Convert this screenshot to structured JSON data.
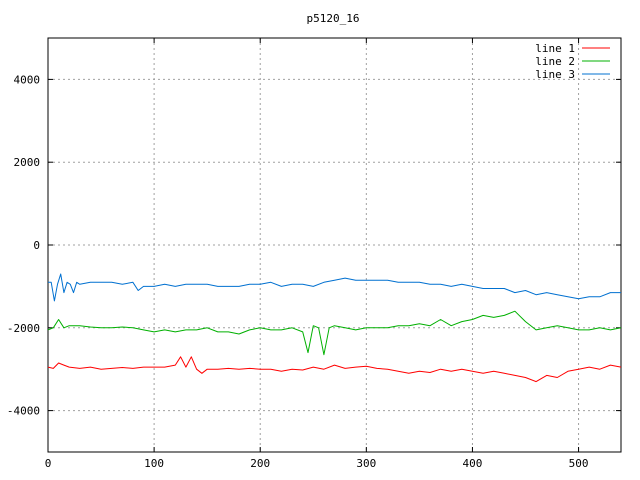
{
  "chart_data": {
    "type": "line",
    "title": "p5120_16",
    "xlabel": "",
    "ylabel": "",
    "xlim": [
      0,
      540
    ],
    "ylim": [
      -5000,
      5000
    ],
    "xticks": [
      0,
      100,
      200,
      300,
      400,
      500
    ],
    "yticks": [
      -4000,
      -2000,
      0,
      2000,
      4000
    ],
    "grid": true,
    "legend_position": "top-right",
    "series": [
      {
        "name": "line 1",
        "color": "#ff0000",
        "x": [
          0,
          5,
          10,
          15,
          20,
          30,
          40,
          50,
          60,
          70,
          80,
          90,
          100,
          110,
          120,
          125,
          130,
          135,
          140,
          145,
          150,
          160,
          170,
          180,
          190,
          200,
          210,
          220,
          230,
          240,
          250,
          260,
          270,
          280,
          290,
          300,
          310,
          320,
          330,
          340,
          350,
          360,
          370,
          380,
          390,
          400,
          410,
          420,
          430,
          440,
          450,
          460,
          470,
          480,
          490,
          500,
          510,
          520,
          530,
          540
        ],
        "y": [
          -2950,
          -2980,
          -2850,
          -2900,
          -2950,
          -2980,
          -2950,
          -3000,
          -2980,
          -2960,
          -2980,
          -2950,
          -2950,
          -2950,
          -2900,
          -2700,
          -2950,
          -2700,
          -3000,
          -3100,
          -3000,
          -3000,
          -2980,
          -3000,
          -2980,
          -3000,
          -3000,
          -3050,
          -3000,
          -3020,
          -2950,
          -3000,
          -2900,
          -2980,
          -2950,
          -2930,
          -2980,
          -3000,
          -3050,
          -3100,
          -3050,
          -3080,
          -3000,
          -3050,
          -3000,
          -3050,
          -3100,
          -3050,
          -3100,
          -3150,
          -3200,
          -3300,
          -3150,
          -3200,
          -3050,
          -3000,
          -2950,
          -3000,
          -2900,
          -2950
        ]
      },
      {
        "name": "line 2",
        "color": "#00b000",
        "x": [
          0,
          5,
          10,
          15,
          20,
          30,
          40,
          50,
          60,
          70,
          80,
          90,
          100,
          110,
          120,
          130,
          140,
          150,
          160,
          170,
          180,
          190,
          200,
          210,
          220,
          230,
          240,
          245,
          250,
          255,
          260,
          265,
          270,
          280,
          290,
          300,
          310,
          320,
          330,
          340,
          350,
          360,
          370,
          380,
          390,
          400,
          410,
          420,
          430,
          440,
          450,
          460,
          470,
          480,
          490,
          500,
          510,
          520,
          530,
          540
        ],
        "y": [
          -2050,
          -2000,
          -1800,
          -2000,
          -1950,
          -1950,
          -1980,
          -2000,
          -2000,
          -1980,
          -2000,
          -2050,
          -2100,
          -2050,
          -2100,
          -2050,
          -2050,
          -2000,
          -2100,
          -2100,
          -2150,
          -2050,
          -2000,
          -2050,
          -2050,
          -2000,
          -2100,
          -2600,
          -1950,
          -2000,
          -2650,
          -2000,
          -1950,
          -2000,
          -2050,
          -2000,
          -2000,
          -2000,
          -1950,
          -1950,
          -1900,
          -1950,
          -1800,
          -1950,
          -1850,
          -1800,
          -1700,
          -1750,
          -1700,
          -1600,
          -1850,
          -2050,
          -2000,
          -1950,
          -2000,
          -2050,
          -2050,
          -2000,
          -2050,
          -2000
        ]
      },
      {
        "name": "line 3",
        "color": "#0070d0",
        "x": [
          0,
          3,
          6,
          9,
          12,
          15,
          18,
          21,
          24,
          27,
          30,
          40,
          50,
          60,
          70,
          80,
          85,
          90,
          100,
          110,
          120,
          130,
          140,
          150,
          160,
          170,
          180,
          190,
          200,
          210,
          220,
          230,
          240,
          250,
          260,
          270,
          280,
          290,
          300,
          310,
          320,
          330,
          340,
          350,
          360,
          370,
          380,
          390,
          400,
          410,
          420,
          430,
          440,
          450,
          460,
          470,
          480,
          490,
          500,
          510,
          520,
          530,
          540
        ],
        "y": [
          -900,
          -900,
          -1350,
          -950,
          -700,
          -1150,
          -900,
          -950,
          -1150,
          -900,
          -950,
          -900,
          -900,
          -900,
          -950,
          -900,
          -1100,
          -1000,
          -1000,
          -950,
          -1000,
          -950,
          -950,
          -950,
          -1000,
          -1000,
          -1000,
          -950,
          -950,
          -900,
          -1000,
          -950,
          -950,
          -1000,
          -900,
          -850,
          -800,
          -850,
          -850,
          -850,
          -850,
          -900,
          -900,
          -900,
          -950,
          -950,
          -1000,
          -950,
          -1000,
          -1050,
          -1050,
          -1050,
          -1150,
          -1100,
          -1200,
          -1150,
          -1200,
          -1250,
          -1300,
          -1250,
          -1250,
          -1150,
          -1150
        ]
      }
    ]
  }
}
